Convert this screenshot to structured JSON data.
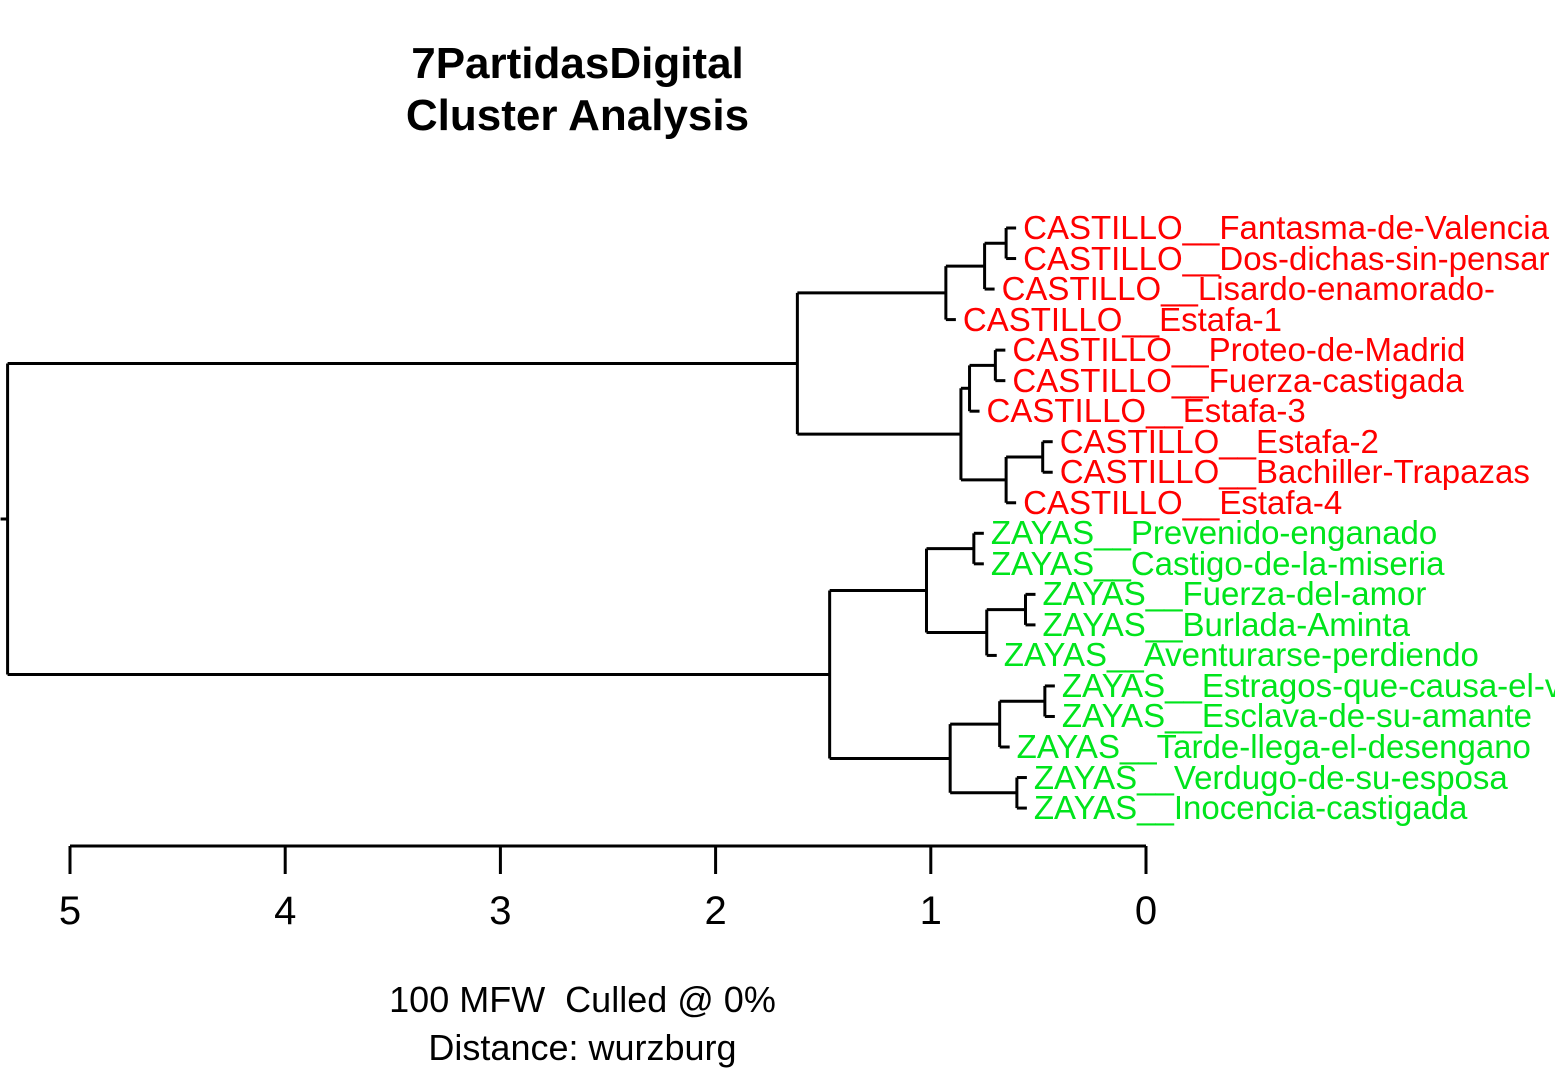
{
  "title": {
    "line1": "7PartidasDigital",
    "line2": "Cluster Analysis"
  },
  "caption": {
    "line1": "100 MFW  Culled @ 0%",
    "line2": "Distance: wurzburg"
  },
  "colors": {
    "castillo": "#ff0000",
    "zayas": "#00e41c",
    "lines": "#000000",
    "background": "#ffffff"
  },
  "chart_data": {
    "type": "dendrogram",
    "orientation": "horizontal",
    "title": "7PartidasDigital Cluster Analysis",
    "subtitle": "100 MFW Culled @ 0% Distance: wurzburg",
    "distance_axis": {
      "ticks": [
        5,
        4,
        3,
        2,
        1,
        0
      ],
      "range": [
        5,
        0
      ],
      "side": "bottom"
    },
    "groups": {
      "castillo": {
        "color": "#ff0000"
      },
      "zayas": {
        "color": "#00e41c"
      }
    },
    "leaves": [
      {
        "label": "CASTILLO__Fantasma-de-Valencia",
        "group": "castillo"
      },
      {
        "label": "CASTILLO__Dos-dichas-sin-pensar",
        "group": "castillo"
      },
      {
        "label": "CASTILLO__Lisardo-enamorado-",
        "group": "castillo"
      },
      {
        "label": "CASTILLO__Estafa-1",
        "group": "castillo"
      },
      {
        "label": "CASTILLO__Proteo-de-Madrid",
        "group": "castillo"
      },
      {
        "label": "CASTILLO__Fuerza-castigada",
        "group": "castillo"
      },
      {
        "label": "CASTILLO__Estafa-3",
        "group": "castillo"
      },
      {
        "label": "CASTILLO__Estafa-2",
        "group": "castillo"
      },
      {
        "label": "CASTILLO__Bachiller-Trapazas",
        "group": "castillo"
      },
      {
        "label": "CASTILLO__Estafa-4",
        "group": "castillo"
      },
      {
        "label": "ZAYAS__Prevenido-enganado",
        "group": "zayas"
      },
      {
        "label": "ZAYAS__Castigo-de-la-miseria",
        "group": "zayas"
      },
      {
        "label": "ZAYAS__Fuerza-del-amor",
        "group": "zayas"
      },
      {
        "label": "ZAYAS__Burlada-Aminta",
        "group": "zayas"
      },
      {
        "label": "ZAYAS__Aventurarse-perdiendo",
        "group": "zayas"
      },
      {
        "label": "ZAYAS__Estragos-que-causa-el-vicio",
        "group": "zayas"
      },
      {
        "label": "ZAYAS__Esclava-de-su-amante",
        "group": "zayas"
      },
      {
        "label": "ZAYAS__Tarde-llega-el-desengano",
        "group": "zayas"
      },
      {
        "label": "ZAYAS__Verdugo-de-su-esposa",
        "group": "zayas"
      },
      {
        "label": "ZAYAS__Inocencia-castigada",
        "group": "zayas"
      }
    ],
    "tree": {
      "h": 5.29,
      "c": [
        {
          "h": 1.62,
          "c": [
            {
              "h": 0.93,
              "c": [
                {
                  "h": 0.75,
                  "c": [
                    {
                      "h": 0.65,
                      "c": [
                        0,
                        1
                      ]
                    },
                    2
                  ]
                },
                3
              ]
            },
            {
              "h": 0.86,
              "c": [
                {
                  "h": 0.82,
                  "c": [
                    {
                      "h": 0.7,
                      "c": [
                        4,
                        5
                      ]
                    },
                    6
                  ]
                },
                {
                  "h": 0.65,
                  "c": [
                    {
                      "h": 0.48,
                      "c": [
                        7,
                        8
                      ]
                    },
                    9
                  ]
                }
              ]
            }
          ]
        },
        {
          "h": 1.47,
          "c": [
            {
              "h": 1.02,
              "c": [
                {
                  "h": 0.8,
                  "c": [
                    10,
                    11
                  ]
                },
                {
                  "h": 0.74,
                  "c": [
                    {
                      "h": 0.56,
                      "c": [
                        12,
                        13
                      ]
                    },
                    14
                  ]
                }
              ]
            },
            {
              "h": 0.91,
              "c": [
                {
                  "h": 0.68,
                  "c": [
                    {
                      "h": 0.47,
                      "c": [
                        15,
                        16
                      ]
                    },
                    17
                  ]
                },
                {
                  "h": 0.6,
                  "c": [
                    18,
                    19
                  ]
                }
              ]
            }
          ]
        }
      ]
    }
  }
}
